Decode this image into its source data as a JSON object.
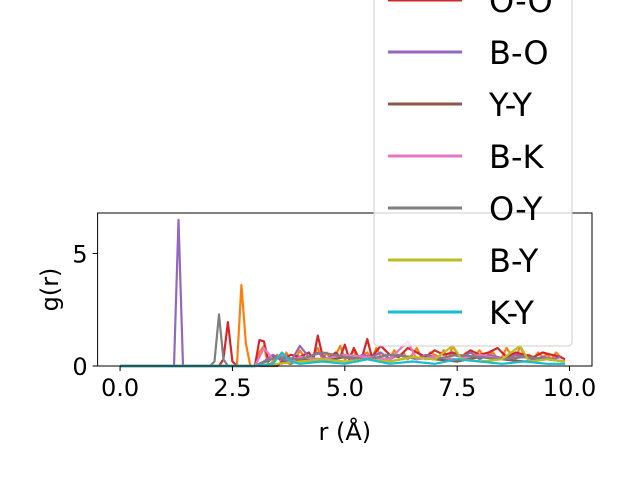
{
  "chart_data": {
    "type": "line",
    "title": "",
    "xlabel": "r (Å)",
    "ylabel": "g(r)",
    "xlim": [
      -0.5,
      10.5
    ],
    "ylim": [
      0,
      6.8
    ],
    "xticks": [
      0.0,
      2.5,
      5.0,
      7.5,
      10.0
    ],
    "xtick_labels": [
      "0.0",
      "2.5",
      "5.0",
      "7.5",
      "10.0"
    ],
    "yticks": [
      0,
      5
    ],
    "ytick_labels": [
      "0",
      "5"
    ],
    "grid": false,
    "legend_position": "upper-right (extends above the axes)",
    "series": [
      {
        "name": "",
        "color": "#ff7f0e",
        "x": [
          0,
          0.1,
          0.2,
          0.3,
          0.4,
          0.5,
          0.6,
          0.7,
          0.8,
          0.9,
          1.0,
          1.1,
          1.2,
          1.3,
          1.4,
          1.5,
          1.6,
          1.7,
          1.8,
          1.9,
          2.0,
          2.1,
          2.2,
          2.3,
          2.4,
          2.5,
          2.6,
          2.7,
          2.8,
          2.9,
          3.0,
          3.1,
          3.2,
          3.3,
          3.4,
          3.5,
          3.6,
          3.7,
          3.8,
          3.9,
          4.0,
          4.1,
          4.2,
          4.3,
          4.4,
          4.5,
          4.6,
          4.7,
          4.8,
          4.9,
          5.0,
          5.1,
          5.2,
          5.3,
          5.4,
          5.5,
          5.6,
          5.7,
          5.8,
          5.9,
          6.0,
          6.1,
          6.2,
          6.3,
          6.4,
          6.5,
          6.6,
          6.7,
          6.8,
          6.9,
          7.0,
          7.1,
          7.2,
          7.3,
          7.4,
          7.5,
          7.6,
          7.7,
          7.8,
          7.9,
          8.0,
          8.1,
          8.2,
          8.3,
          8.4,
          8.5,
          8.6,
          8.7,
          8.8,
          8.9,
          9.0,
          9.1,
          9.2,
          9.3,
          9.4,
          9.5,
          9.6,
          9.7,
          9.8,
          9.9
        ],
        "y": [
          0,
          0,
          0,
          0,
          0,
          0,
          0,
          0,
          0,
          0,
          0,
          0,
          0,
          0,
          0,
          0,
          0,
          0,
          0,
          0,
          0,
          0,
          0,
          0,
          0,
          0,
          0,
          3.6,
          1.0,
          0,
          0,
          0.6,
          0.9,
          0,
          0.2,
          0.5,
          0.1,
          0.6,
          0.2,
          0.3,
          0.7,
          0.4,
          0.2,
          0.5,
          0.8,
          0.3,
          0.6,
          0.2,
          0.5,
          0.9,
          0.3,
          0.4,
          0.7,
          0.2,
          0.5,
          0.6,
          0.3,
          0.8,
          0.4,
          0.5,
          0.3,
          0.7,
          0.4,
          0.6,
          0.3,
          0.5,
          0.8,
          0.4,
          0.3,
          0.6,
          0.5,
          0.4,
          0.7,
          0.3,
          0.9,
          0.5,
          0.4,
          0.6,
          0.3,
          0.5,
          0.7,
          0.4,
          0.5,
          0.6,
          0.3,
          0.4,
          0.8,
          0.5,
          0.3,
          0.9,
          0.4,
          0.5,
          0.3,
          0.6,
          0.4,
          0.5,
          0.3,
          0.6,
          0.4,
          0.3
        ]
      },
      {
        "name": "O-O",
        "color": "#d62728",
        "x": [
          0,
          0.2,
          0.4,
          0.6,
          0.8,
          1.0,
          1.2,
          1.4,
          1.6,
          1.8,
          2.0,
          2.2,
          2.3,
          2.4,
          2.5,
          2.6,
          2.8,
          3.0,
          3.1,
          3.2,
          3.3,
          3.4,
          3.6,
          3.8,
          4.0,
          4.2,
          4.3,
          4.4,
          4.5,
          4.6,
          4.8,
          4.9,
          5.0,
          5.1,
          5.2,
          5.3,
          5.4,
          5.5,
          5.6,
          5.8,
          6.0,
          6.2,
          6.4,
          6.6,
          6.8,
          7.0,
          7.2,
          7.4,
          7.6,
          7.8,
          8.0,
          8.2,
          8.4,
          8.6,
          8.8,
          9.0,
          9.2,
          9.4,
          9.6,
          9.8,
          9.9
        ],
        "y": [
          0,
          0,
          0,
          0,
          0,
          0,
          0,
          0,
          0,
          0,
          0,
          0,
          0.3,
          1.95,
          0.2,
          0,
          0,
          0,
          1.15,
          1.1,
          0.2,
          0.4,
          0.3,
          0.5,
          0.4,
          0.6,
          0.3,
          1.35,
          0.5,
          0.3,
          0.6,
          0.4,
          0.95,
          0.3,
          0.8,
          0.4,
          0.5,
          1.2,
          0.4,
          0.9,
          0.5,
          0.4,
          0.8,
          0.6,
          0.4,
          0.7,
          0.5,
          0.6,
          0.4,
          0.7,
          0.5,
          0.6,
          0.8,
          0.4,
          0.6,
          0.5,
          0.4,
          0.6,
          0.5,
          0.4,
          0.3
        ]
      },
      {
        "name": "B-O",
        "color": "#9467bd",
        "x": [
          0,
          0.2,
          0.4,
          0.6,
          0.8,
          1.0,
          1.2,
          1.3,
          1.4,
          1.5,
          1.6,
          1.8,
          2.0,
          2.5,
          3.0,
          3.2,
          3.4,
          3.6,
          3.8,
          4.0,
          4.2,
          4.4,
          4.6,
          4.8,
          5.0,
          5.2,
          5.4,
          5.6,
          5.8,
          6.0,
          6.2,
          6.4,
          6.6,
          6.8,
          7.0,
          7.2,
          7.4,
          7.6,
          7.8,
          8.0,
          8.2,
          8.4,
          8.6,
          8.8,
          9.0,
          9.2,
          9.4,
          9.6,
          9.8
        ],
        "y": [
          0,
          0,
          0,
          0,
          0,
          0,
          0,
          6.5,
          0,
          0,
          0,
          0,
          0,
          0,
          0,
          0.2,
          0.5,
          0.3,
          0.2,
          0.9,
          0.4,
          0.6,
          0.3,
          0.5,
          0.4,
          0.3,
          0.5,
          0.4,
          0.6,
          0.3,
          0.5,
          0.4,
          0.3,
          0.5,
          0.4,
          0.3,
          0.5,
          0.4,
          0.6,
          0.3,
          0.5,
          0.4,
          0.3,
          0.5,
          0.4,
          0.3,
          0.4,
          0.3,
          0.4
        ]
      },
      {
        "name": "Y-Y",
        "color": "#8c564b",
        "x": [
          0,
          1.0,
          2.0,
          3.0,
          3.5,
          3.6,
          3.8,
          4.0,
          4.5,
          5.0,
          5.5,
          6.0,
          6.5,
          7.0,
          7.5,
          8.0,
          8.5,
          9.0,
          9.5,
          9.9
        ],
        "y": [
          0,
          0,
          0,
          0,
          0,
          0.2,
          0.1,
          0.3,
          0.2,
          0.4,
          0.3,
          0.2,
          0.4,
          0.3,
          0.2,
          0.4,
          0.3,
          0.2,
          0.3,
          0.2
        ]
      },
      {
        "name": "B-K",
        "color": "#e377c2",
        "x": [
          0,
          1.0,
          2.0,
          3.0,
          3.2,
          3.4,
          3.6,
          3.8,
          4.0,
          4.5,
          5.0,
          5.5,
          6.0,
          6.4,
          6.6,
          7.0,
          7.5,
          8.0,
          8.5,
          9.0,
          9.5,
          9.9
        ],
        "y": [
          0,
          0,
          0,
          0,
          0.8,
          0.3,
          0.5,
          0.2,
          0.4,
          0.3,
          0.5,
          0.4,
          0.3,
          1.1,
          0.3,
          0.4,
          0.3,
          0.5,
          0.3,
          0.4,
          0.3,
          0.2
        ]
      },
      {
        "name": "O-Y",
        "color": "#7f7f7f",
        "x": [
          0,
          0.5,
          1.0,
          1.5,
          2.0,
          2.1,
          2.2,
          2.3,
          2.4,
          2.6,
          3.0,
          3.5,
          4.0,
          4.5,
          5.0,
          5.5,
          6.0,
          6.5,
          7.0,
          7.5,
          8.0,
          8.5,
          9.0,
          9.5,
          9.9
        ],
        "y": [
          0,
          0,
          0,
          0,
          0,
          0.2,
          2.3,
          0.3,
          0,
          0,
          0,
          0.4,
          0.3,
          0.6,
          0.4,
          0.3,
          0.5,
          0.4,
          0.3,
          0.5,
          0.4,
          0.3,
          0.4,
          0.3,
          0.2
        ]
      },
      {
        "name": "B-Y",
        "color": "#bcbd22",
        "x": [
          0,
          1.0,
          2.0,
          3.0,
          3.5,
          4.0,
          4.5,
          5.0,
          5.5,
          6.0,
          6.5,
          7.0,
          7.4,
          7.6,
          8.0,
          8.5,
          8.9,
          9.1,
          9.5,
          9.9
        ],
        "y": [
          0,
          0,
          0,
          0,
          0.1,
          0.2,
          0.3,
          0.2,
          0.3,
          0.2,
          0.4,
          0.3,
          0.9,
          0.3,
          0.2,
          0.3,
          0.9,
          0.2,
          0.3,
          0.2
        ]
      },
      {
        "name": "K-Y",
        "color": "#17becf",
        "x": [
          0,
          1.0,
          2.0,
          3.0,
          3.4,
          3.6,
          3.8,
          4.0,
          4.5,
          5.0,
          5.5,
          6.0,
          6.5,
          7.0,
          7.5,
          8.0,
          8.5,
          9.0,
          9.5,
          9.9
        ],
        "y": [
          0,
          0,
          0,
          0,
          0.1,
          0.6,
          0.2,
          0.1,
          0.2,
          0.1,
          0.3,
          0.1,
          0.2,
          0.1,
          0.3,
          0.2,
          0.1,
          0.2,
          0.1,
          0.1
        ]
      }
    ]
  }
}
